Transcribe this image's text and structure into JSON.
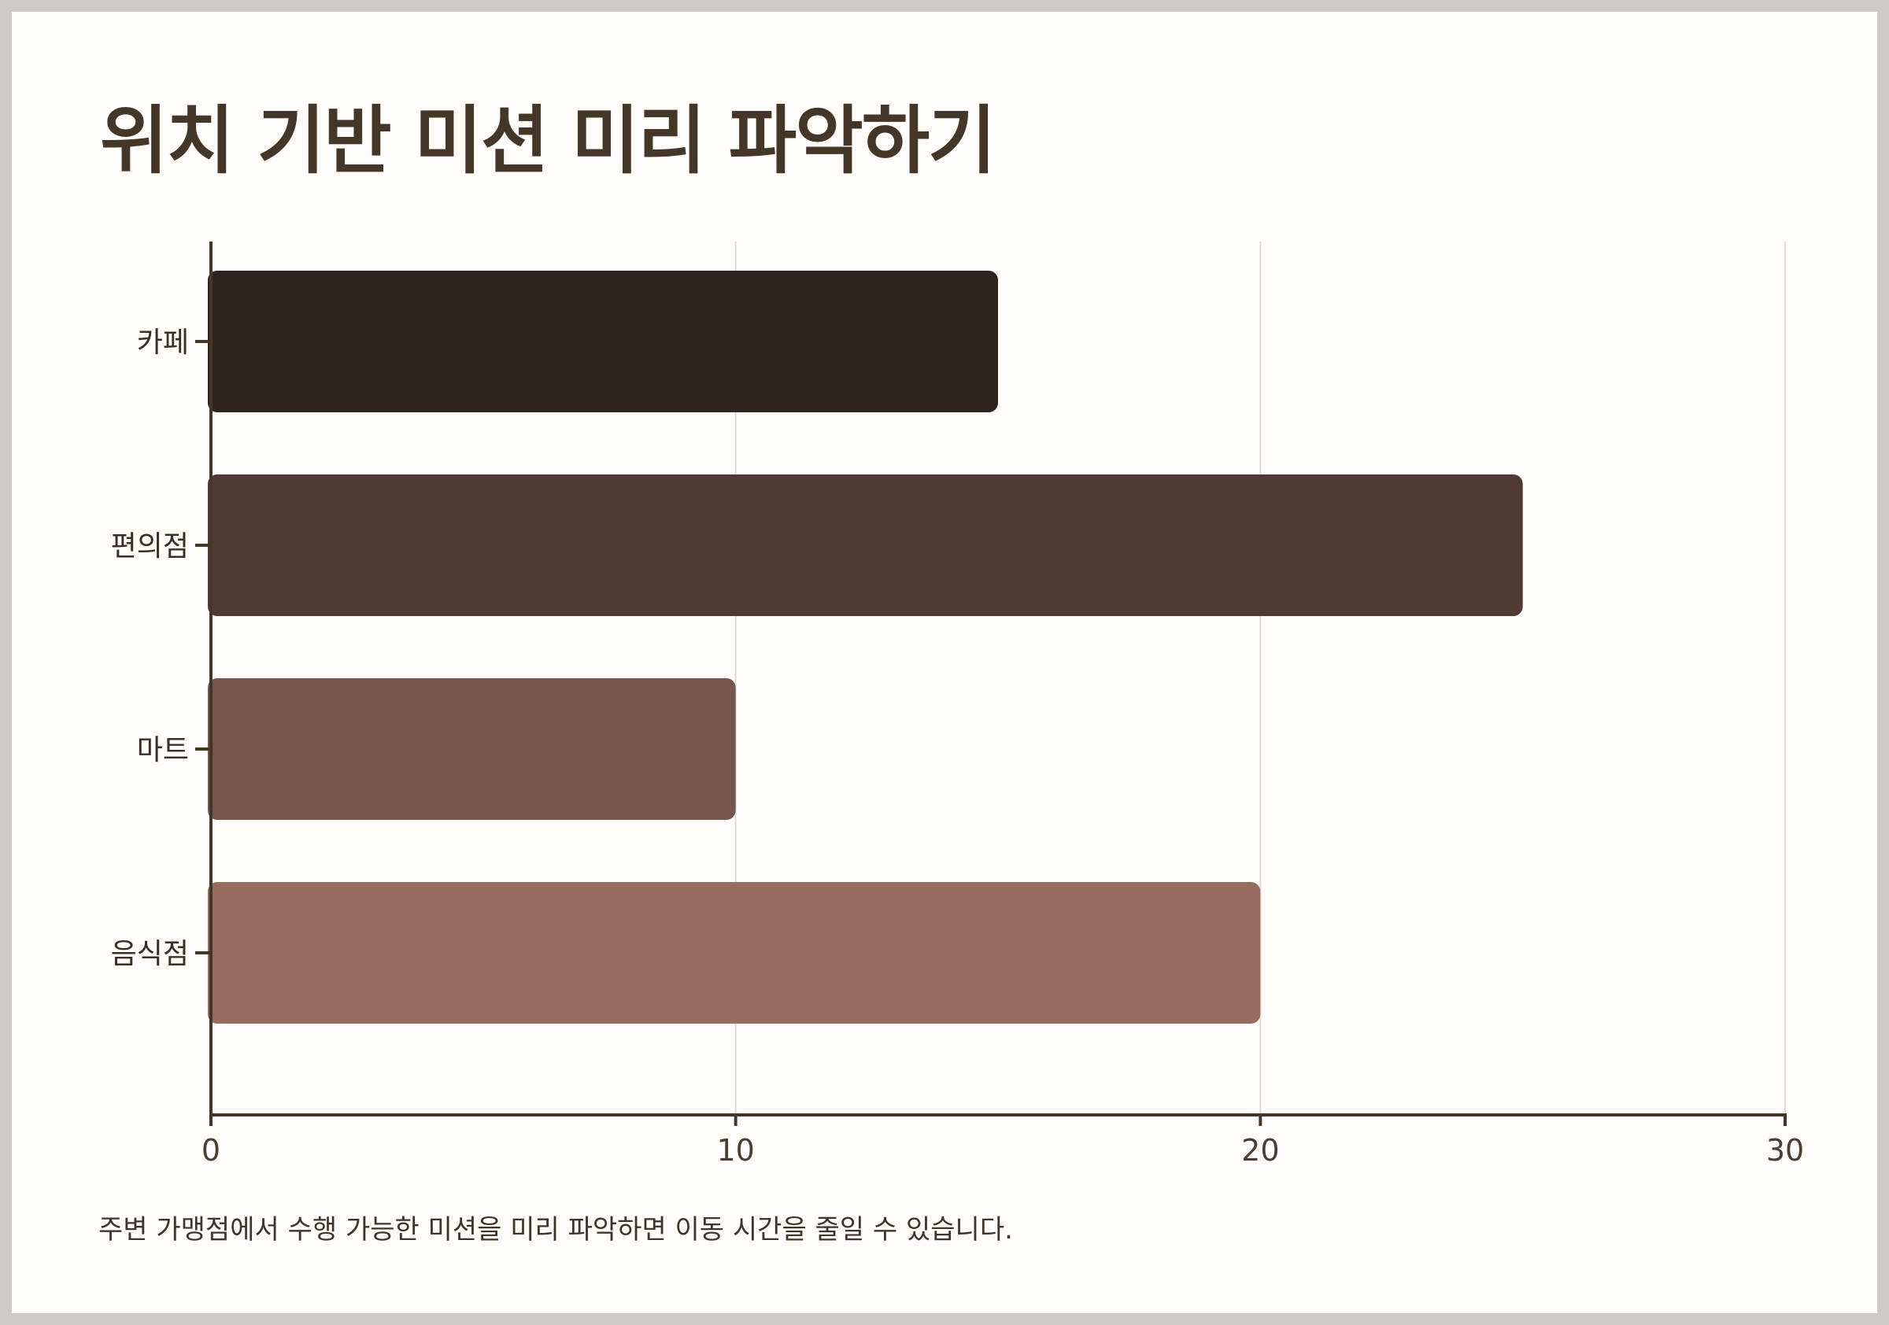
{
  "title": "위치 기반 미션 미리 파악하기",
  "caption": "주변 가맹점에서 수행 가능한 미션을 미리 파악하면 이동 시간을 줄일 수 있습니다.",
  "chart_data": {
    "type": "bar",
    "orientation": "horizontal",
    "categories": [
      "카페",
      "편의점",
      "마트",
      "음식점"
    ],
    "values": [
      15,
      25,
      10,
      20
    ],
    "colors": [
      "#2f2320",
      "#523a34",
      "#75564c",
      "#966c61"
    ],
    "xlim": [
      0,
      30
    ],
    "xticks": [
      "0",
      "10",
      "20",
      "30"
    ],
    "grid": true,
    "axis_color": "#45362a",
    "grid_color": "#dcdad6"
  }
}
